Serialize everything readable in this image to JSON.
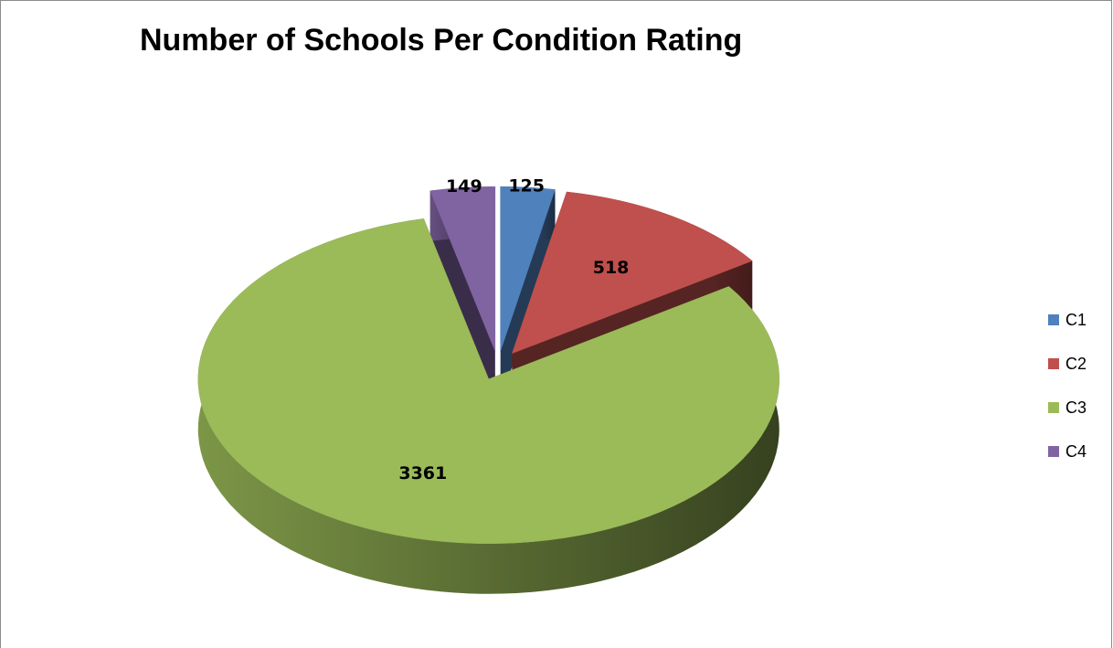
{
  "chart_data": {
    "type": "pie",
    "title": "Number of Schools Per Condition Rating",
    "categories": [
      "C1",
      "C2",
      "C3",
      "C4"
    ],
    "values": [
      125,
      518,
      3361,
      149
    ],
    "colors": [
      "#4f81bd",
      "#c0504d",
      "#9bbb59",
      "#8064a2"
    ]
  }
}
